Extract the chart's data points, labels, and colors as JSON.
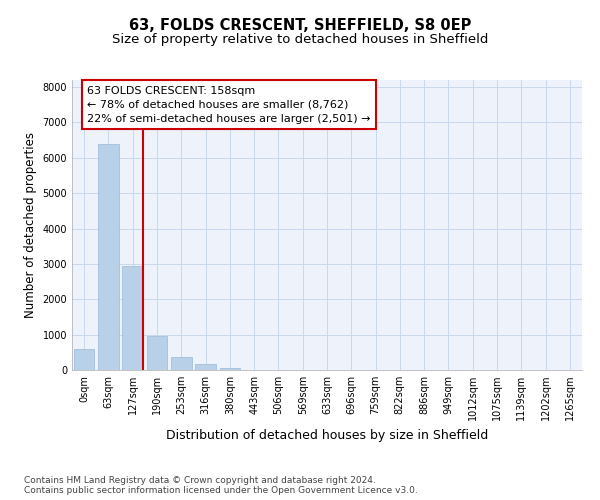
{
  "title1": "63, FOLDS CRESCENT, SHEFFIELD, S8 0EP",
  "title2": "Size of property relative to detached houses in Sheffield",
  "xlabel": "Distribution of detached houses by size in Sheffield",
  "ylabel": "Number of detached properties",
  "bar_labels": [
    "0sqm",
    "63sqm",
    "127sqm",
    "190sqm",
    "253sqm",
    "316sqm",
    "380sqm",
    "443sqm",
    "506sqm",
    "569sqm",
    "633sqm",
    "696sqm",
    "759sqm",
    "822sqm",
    "886sqm",
    "949sqm",
    "1012sqm",
    "1075sqm",
    "1139sqm",
    "1202sqm",
    "1265sqm"
  ],
  "bar_values": [
    580,
    6400,
    2930,
    960,
    370,
    160,
    65,
    0,
    0,
    0,
    0,
    0,
    0,
    0,
    0,
    0,
    0,
    0,
    0,
    0,
    0
  ],
  "bar_color": "#b8d0e8",
  "bar_edge_color": "#9ab8d8",
  "grid_color": "#c8d8ec",
  "background_color": "#edf2fb",
  "vline_color": "#cc0000",
  "annotation_line1": "63 FOLDS CRESCENT: 158sqm",
  "annotation_line2": "← 78% of detached houses are smaller (8,762)",
  "annotation_line3": "22% of semi-detached houses are larger (2,501) →",
  "annotation_box_color": "#cc0000",
  "ylim": [
    0,
    8200
  ],
  "yticks": [
    0,
    1000,
    2000,
    3000,
    4000,
    5000,
    6000,
    7000,
    8000
  ],
  "footer": "Contains HM Land Registry data © Crown copyright and database right 2024.\nContains public sector information licensed under the Open Government Licence v3.0.",
  "title1_fontsize": 10.5,
  "title2_fontsize": 9.5,
  "xlabel_fontsize": 9,
  "ylabel_fontsize": 8.5,
  "tick_fontsize": 7,
  "annotation_fontsize": 8,
  "footer_fontsize": 6.5
}
